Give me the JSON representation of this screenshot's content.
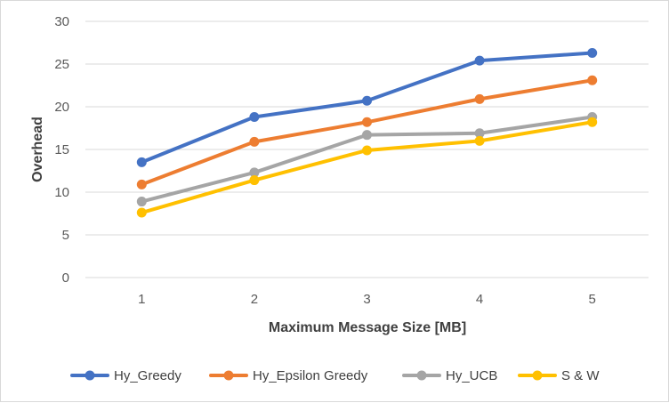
{
  "chart_data": {
    "type": "line",
    "title": "",
    "xlabel": "Maximum Message Size [MB]",
    "ylabel": "Overhead",
    "x": [
      1,
      2,
      3,
      4,
      5
    ],
    "x_tick_labels": [
      "1",
      "2",
      "3",
      "4",
      "5"
    ],
    "ylim": [
      0,
      30
    ],
    "y_ticks": [
      0,
      5,
      10,
      15,
      20,
      25,
      30
    ],
    "y_tick_labels": [
      "0",
      "5",
      "10",
      "15",
      "20",
      "25",
      "30"
    ],
    "grid": "horizontal",
    "legend_position": "bottom",
    "series": [
      {
        "name": "Hy_Greedy",
        "color": "#4472C4",
        "values": [
          13.5,
          18.8,
          20.7,
          25.4,
          26.3
        ]
      },
      {
        "name": "Hy_Epsilon Greedy",
        "color": "#ED7D31",
        "values": [
          10.9,
          15.9,
          18.2,
          20.9,
          23.1
        ]
      },
      {
        "name": "Hy_UCB",
        "color": "#A5A5A5",
        "values": [
          8.9,
          12.3,
          16.7,
          16.9,
          18.8
        ]
      },
      {
        "name": "S & W",
        "color": "#FFC000",
        "values": [
          7.6,
          11.4,
          14.9,
          16.0,
          18.2
        ]
      }
    ]
  }
}
